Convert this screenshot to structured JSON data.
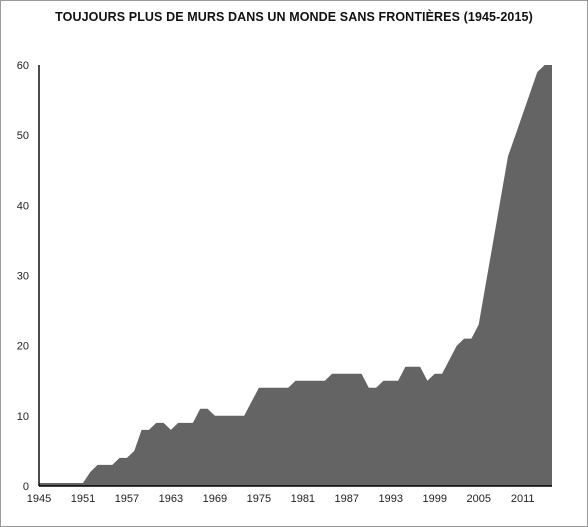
{
  "chart_data": {
    "type": "area",
    "title": "TOUJOURS PLUS DE MURS DANS UN MONDE SANS FRONTIÈRES (1945-2015)",
    "xlabel": "",
    "ylabel": "",
    "xlim": [
      1945,
      2015
    ],
    "ylim": [
      0,
      60
    ],
    "x_ticks": [
      "1945",
      "1951",
      "1957",
      "1963",
      "1969",
      "1975",
      "1981",
      "1987",
      "1993",
      "1999",
      "2005",
      "2011"
    ],
    "y_ticks": [
      "0",
      "10",
      "20",
      "30",
      "40",
      "50",
      "60"
    ],
    "grid": false,
    "legend": "none",
    "fill_color": "#636463",
    "series": [
      {
        "x": [
          1945,
          1951,
          1952,
          1953,
          1955,
          1956,
          1957,
          1958,
          1959,
          1960,
          1961,
          1962,
          1963,
          1964,
          1965,
          1966,
          1967,
          1968,
          1969,
          1970,
          1971,
          1972,
          1973,
          1974,
          1975,
          1976,
          1977,
          1978,
          1979,
          1980,
          1981,
          1982,
          1983,
          1984,
          1985,
          1986,
          1987,
          1988,
          1989,
          1990,
          1991,
          1992,
          1993,
          1994,
          1995,
          1996,
          1997,
          1998,
          1999,
          2000,
          2001,
          2002,
          2003,
          2004,
          2005,
          2006,
          2007,
          2008,
          2009,
          2010,
          2011,
          2012,
          2013,
          2014,
          2015
        ],
        "y": [
          0,
          0,
          2,
          3,
          3,
          4,
          4,
          5,
          8,
          8,
          9,
          9,
          8,
          9,
          9,
          9,
          11,
          11,
          10,
          10,
          10,
          10,
          10,
          12,
          14,
          14,
          14,
          14,
          14,
          15,
          15,
          15,
          15,
          15,
          16,
          16,
          16,
          16,
          16,
          14,
          14,
          15,
          15,
          15,
          17,
          17,
          17,
          15,
          16,
          16,
          18,
          20,
          21,
          21,
          23,
          29,
          35,
          41,
          47,
          50,
          53,
          56,
          59,
          62,
          64
        ]
      }
    ]
  }
}
